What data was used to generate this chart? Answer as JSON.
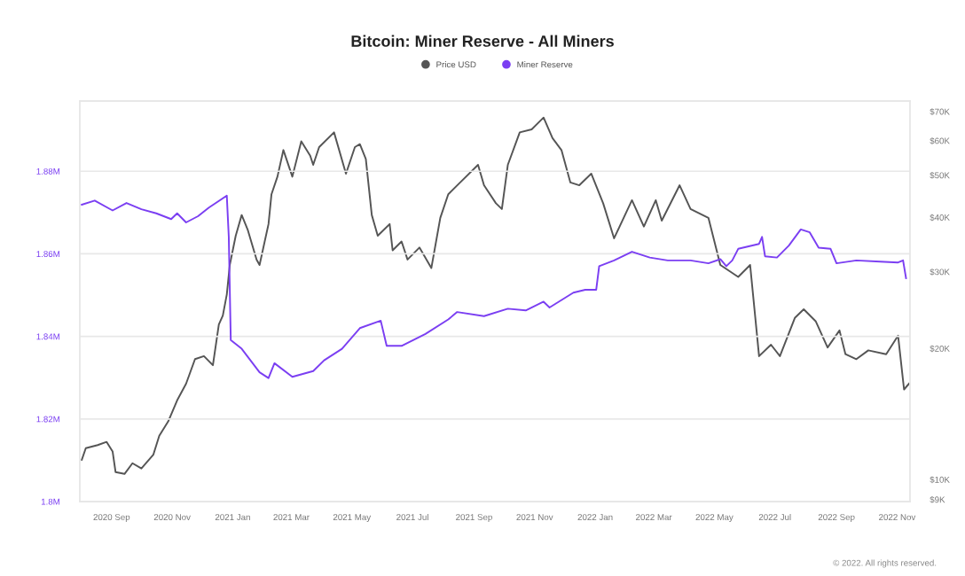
{
  "chart_data": {
    "type": "line",
    "title": "Bitcoin: Miner Reserve - All Miners",
    "legend": "top",
    "grid": "y",
    "marker": "none",
    "line_style": "solid",
    "xlim": [
      "2020-07-31",
      "2022-11-14"
    ],
    "xticks": [
      {
        "value": "2020-09-01",
        "label": "2020 Sep"
      },
      {
        "value": "2020-11-01",
        "label": "2020 Nov"
      },
      {
        "value": "2021-01-01",
        "label": "2021 Jan"
      },
      {
        "value": "2021-03-01",
        "label": "2021 Mar"
      },
      {
        "value": "2021-05-01",
        "label": "2021 May"
      },
      {
        "value": "2021-07-01",
        "label": "2021 Jul"
      },
      {
        "value": "2021-09-01",
        "label": "2021 Sep"
      },
      {
        "value": "2021-11-01",
        "label": "2021 Nov"
      },
      {
        "value": "2022-01-01",
        "label": "2022 Jan"
      },
      {
        "value": "2022-03-01",
        "label": "2022 Mar"
      },
      {
        "value": "2022-05-01",
        "label": "2022 May"
      },
      {
        "value": "2022-07-01",
        "label": "2022 Jul"
      },
      {
        "value": "2022-09-01",
        "label": "2022 Sep"
      },
      {
        "value": "2022-11-01",
        "label": "2022 Nov"
      }
    ],
    "ylim": [
      1800000,
      1897000
    ],
    "yticks": [
      {
        "value": 1800000,
        "label": "1.8M"
      },
      {
        "value": 1820000,
        "label": "1.82M"
      },
      {
        "value": 1840000,
        "label": "1.84M"
      },
      {
        "value": 1860000,
        "label": "1.86M"
      },
      {
        "value": 1880000,
        "label": "1.88M"
      }
    ],
    "log": "y2",
    "y2lim": [
      8900,
      74000
    ],
    "y2ticks": [
      {
        "value": 9000,
        "label": "$9K"
      },
      {
        "value": 10000,
        "label": "$10K"
      },
      {
        "value": 20000,
        "label": "$20K"
      },
      {
        "value": 30000,
        "label": "$30K"
      },
      {
        "value": 40000,
        "label": "$40K"
      },
      {
        "value": 50000,
        "label": "$50K"
      },
      {
        "value": 60000,
        "label": "$60K"
      },
      {
        "value": 70000,
        "label": "$70K"
      }
    ],
    "annotations": [
      "© 2022. All rights reserved."
    ],
    "series": [
      {
        "name": "Price USD",
        "color": "#555555",
        "axis": "y2",
        "x": [
          "2020-08-02",
          "2020-08-06",
          "2020-08-18",
          "2020-08-27",
          "2020-09-02",
          "2020-09-05",
          "2020-09-14",
          "2020-09-22",
          "2020-10-01",
          "2020-10-13",
          "2020-10-19",
          "2020-10-28",
          "2020-11-06",
          "2020-11-15",
          "2020-11-24",
          "2020-12-03",
          "2020-12-12",
          "2020-12-18",
          "2020-12-22",
          "2020-12-26",
          "2020-12-29",
          "2021-01-04",
          "2021-01-10",
          "2021-01-16",
          "2021-01-25",
          "2021-01-28",
          "2021-02-06",
          "2021-02-09",
          "2021-02-15",
          "2021-02-21",
          "2021-03-02",
          "2021-03-11",
          "2021-03-20",
          "2021-03-23",
          "2021-03-29",
          "2021-04-13",
          "2021-04-25",
          "2021-05-04",
          "2021-05-09",
          "2021-05-15",
          "2021-05-21",
          "2021-05-27",
          "2021-06-08",
          "2021-06-11",
          "2021-06-20",
          "2021-06-26",
          "2021-07-08",
          "2021-07-20",
          "2021-07-29",
          "2021-08-06",
          "2021-08-18",
          "2021-09-05",
          "2021-09-11",
          "2021-09-23",
          "2021-09-29",
          "2021-10-05",
          "2021-10-17",
          "2021-10-29",
          "2021-11-10",
          "2021-11-19",
          "2021-11-28",
          "2021-12-07",
          "2021-12-16",
          "2021-12-28",
          "2022-01-09",
          "2022-01-20",
          "2022-02-07",
          "2022-02-19",
          "2022-03-03",
          "2022-03-09",
          "2022-03-27",
          "2022-04-07",
          "2022-04-25",
          "2022-05-07",
          "2022-05-25",
          "2022-06-06",
          "2022-06-15",
          "2022-06-27",
          "2022-07-06",
          "2022-07-21",
          "2022-07-30",
          "2022-08-11",
          "2022-08-23",
          "2022-09-04",
          "2022-09-10",
          "2022-09-21",
          "2022-10-03",
          "2022-10-21",
          "2022-11-02",
          "2022-11-08",
          "2022-11-13"
        ],
        "values": [
          11100,
          11800,
          12000,
          12200,
          11600,
          10400,
          10300,
          10900,
          10600,
          11400,
          12600,
          13600,
          15200,
          16600,
          18900,
          19200,
          18300,
          22700,
          23800,
          26600,
          31100,
          36300,
          40500,
          37500,
          32000,
          31100,
          38600,
          45200,
          49600,
          57100,
          49600,
          59800,
          55400,
          52800,
          58000,
          62700,
          50400,
          58000,
          58900,
          54500,
          40500,
          36300,
          38600,
          33600,
          35200,
          32000,
          34100,
          30600,
          39900,
          45200,
          48100,
          52800,
          47400,
          43100,
          41800,
          52800,
          62700,
          63700,
          67800,
          60800,
          57100,
          48100,
          47400,
          50400,
          43100,
          35800,
          43800,
          38100,
          43800,
          39300,
          47400,
          41800,
          39900,
          31100,
          29200,
          31100,
          19200,
          20400,
          19200,
          23500,
          24600,
          23100,
          20100,
          22000,
          19400,
          18900,
          19800,
          19400,
          21400,
          16100,
          16600
        ]
      },
      {
        "name": "Miner Reserve",
        "color": "#7b3ff2",
        "x": [
          "2020-08-02",
          "2020-08-15",
          "2020-09-02",
          "2020-09-16",
          "2020-10-01",
          "2020-10-16",
          "2020-10-31",
          "2020-11-06",
          "2020-11-15",
          "2020-11-27",
          "2020-12-08",
          "2020-12-26",
          "2020-12-28",
          "2020-12-30",
          "2021-01-10",
          "2021-01-28",
          "2021-02-06",
          "2021-02-12",
          "2021-03-02",
          "2021-03-23",
          "2021-04-03",
          "2021-04-21",
          "2021-05-09",
          "2021-05-30",
          "2021-06-05",
          "2021-06-20",
          "2021-07-14",
          "2021-08-06",
          "2021-08-15",
          "2021-09-11",
          "2021-10-05",
          "2021-10-23",
          "2021-11-10",
          "2021-11-16",
          "2021-12-10",
          "2021-12-22",
          "2022-01-02",
          "2022-01-05",
          "2022-01-20",
          "2022-02-07",
          "2022-02-25",
          "2022-03-15",
          "2022-04-07",
          "2022-04-25",
          "2022-05-07",
          "2022-05-13",
          "2022-05-19",
          "2022-05-25",
          "2022-06-15",
          "2022-06-18",
          "2022-06-21",
          "2022-07-03",
          "2022-07-15",
          "2022-07-27",
          "2022-08-05",
          "2022-08-14",
          "2022-08-26",
          "2022-09-01",
          "2022-09-21",
          "2022-10-15",
          "2022-11-02",
          "2022-11-07",
          "2022-11-10"
        ],
        "values": [
          1871900,
          1872900,
          1870500,
          1872300,
          1870800,
          1869800,
          1868400,
          1869800,
          1867600,
          1869100,
          1871200,
          1874100,
          1864100,
          1839100,
          1837000,
          1831300,
          1829900,
          1833500,
          1830200,
          1831600,
          1834200,
          1837000,
          1842000,
          1843800,
          1837700,
          1837700,
          1840600,
          1844100,
          1845900,
          1844900,
          1846700,
          1846300,
          1848400,
          1847000,
          1850600,
          1851300,
          1851300,
          1857000,
          1858400,
          1860500,
          1859100,
          1858400,
          1858400,
          1857700,
          1858700,
          1857000,
          1858400,
          1861200,
          1862400,
          1864100,
          1859400,
          1859100,
          1862000,
          1865900,
          1865200,
          1861500,
          1861200,
          1857700,
          1858400,
          1858100,
          1857900,
          1858400,
          1854100
        ]
      }
    ]
  }
}
